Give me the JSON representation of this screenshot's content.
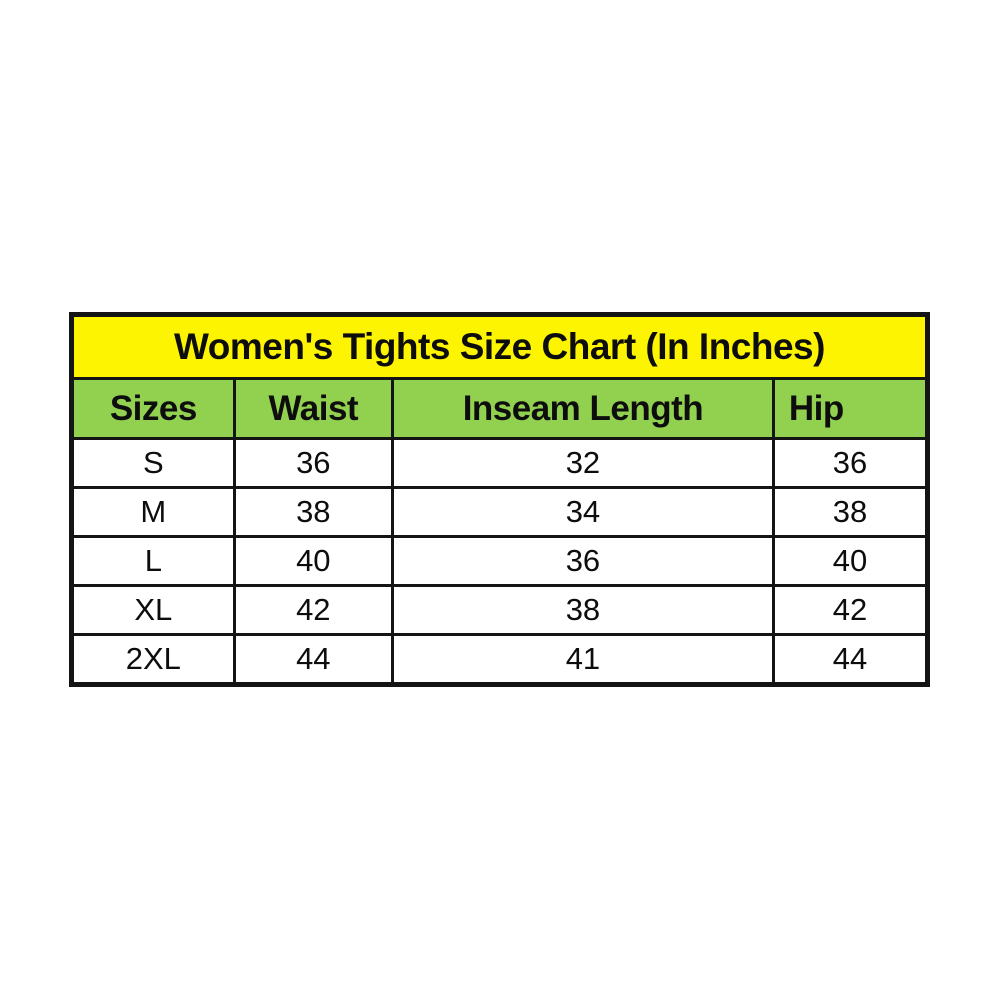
{
  "page": {
    "background_color": "#ffffff"
  },
  "chart_data": {
    "type": "table",
    "title": "Women's Tights Size Chart (In Inches)",
    "columns": [
      "Sizes",
      "Waist",
      "Inseam Length",
      "Hip"
    ],
    "rows": [
      [
        "S",
        "36",
        "32",
        "36"
      ],
      [
        "M",
        "38",
        "34",
        "38"
      ],
      [
        "L",
        "40",
        "36",
        "40"
      ],
      [
        "XL",
        "42",
        "38",
        "42"
      ],
      [
        "2XL",
        "44",
        "41",
        "44"
      ]
    ],
    "layout": {
      "title_align": "center",
      "header_align": "center",
      "hip_header_align": "left",
      "cell_align": "center",
      "legend": "none",
      "grid": "thick-black-borders"
    },
    "colors": {
      "page_background": "#ffffff",
      "title_background": "#fcf400",
      "header_background": "#92d050",
      "row_background": "#ffffff",
      "border": "#141414",
      "text": "#0d0d0d"
    }
  }
}
